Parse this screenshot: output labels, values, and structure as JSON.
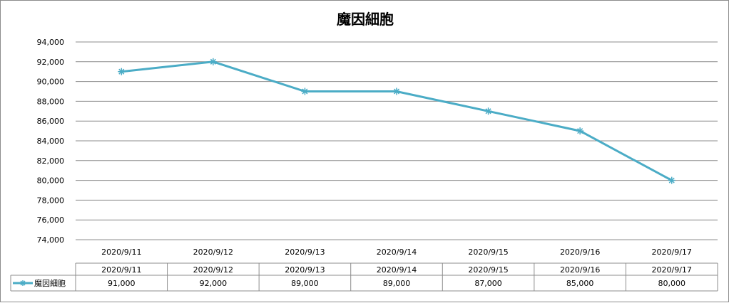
{
  "chart_data": {
    "type": "line",
    "title": "魔因細胞",
    "categories": [
      "2020/9/11",
      "2020/9/12",
      "2020/9/13",
      "2020/9/14",
      "2020/9/15",
      "2020/9/16",
      "2020/9/17"
    ],
    "series": [
      {
        "name": "魔因細胞",
        "values": [
          91000,
          92000,
          89000,
          89000,
          87000,
          85000,
          80000
        ],
        "color": "#4bacc6",
        "marker": "asterisk"
      }
    ],
    "ylim": [
      74000,
      94000
    ],
    "ytick_step": 2000,
    "yticks": [
      "74,000",
      "76,000",
      "78,000",
      "80,000",
      "82,000",
      "84,000",
      "86,000",
      "88,000",
      "90,000",
      "92,000",
      "94,000"
    ],
    "grid": true,
    "legend": "data-table",
    "data_table": {
      "row_label": "魔因細胞",
      "values": [
        "91,000",
        "92,000",
        "89,000",
        "89,000",
        "87,000",
        "85,000",
        "80,000"
      ]
    }
  }
}
